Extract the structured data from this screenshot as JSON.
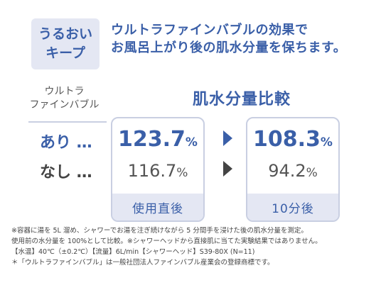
{
  "badge": {
    "line1": "うるおい",
    "line2": "キープ"
  },
  "headline": {
    "line1": "ウルトラファインバブルの効果で",
    "line2": "お風呂上がり後の肌水分量を保ちます。"
  },
  "legend": {
    "heading_line1": "ウルトラ",
    "heading_line2": "ファインバブル",
    "row_with": "あり …",
    "row_without": "なし …"
  },
  "chart_data": {
    "type": "table",
    "title": "肌水分量比較",
    "unit": "%",
    "categories": [
      "使用直後",
      "10分後"
    ],
    "series": [
      {
        "name": "あり",
        "values": [
          123.7,
          108.3
        ]
      },
      {
        "name": "なし",
        "values": [
          116.7,
          94.2
        ]
      }
    ],
    "labels": {
      "with": [
        "123.7",
        "108.3"
      ],
      "without": [
        "116.7",
        "94.2"
      ]
    }
  },
  "colors": {
    "accent": "#3a5fa8",
    "panel": "#e4e7f3",
    "border": "#c9cfe2",
    "dark": "#444444"
  },
  "notes": [
    "※容器に湯を 5L 溜め、シャワーでお湯を注ぎ続けながら 5 分間手を浸けた後の肌水分量を測定。",
    "使用前の水分量を 100%として比較。※シャワーヘッドから直接肌に当てた実験結果ではありません。",
    "【水温】40℃（±0.2℃）【流量】6L/min【シャワーヘッド】S39-80X (N=11)",
    "＊「ウルトラファインバブル」は一般社団法人ファインバブル産業会の登録商標です。"
  ]
}
